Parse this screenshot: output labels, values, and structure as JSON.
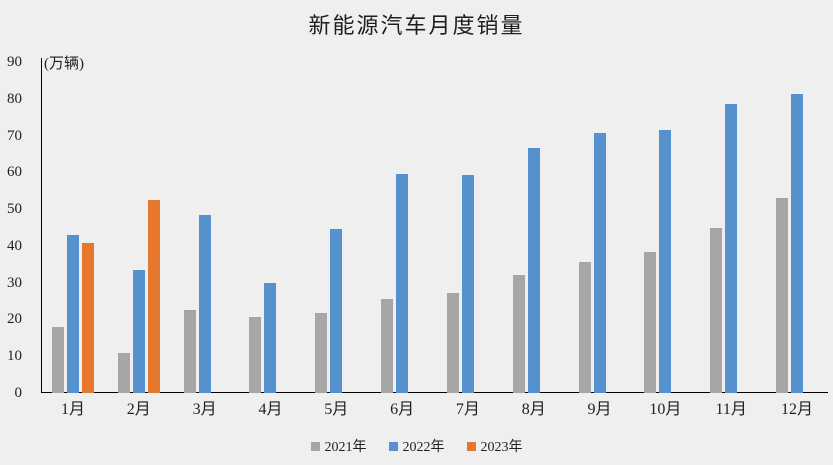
{
  "title": "新能源汽车月度销量",
  "y_axis_unit": "(万辆)",
  "chart_data": {
    "type": "bar",
    "title": "新能源汽车月度销量",
    "ylabel": "(万辆)",
    "xlabel": "",
    "categories": [
      "1月",
      "2月",
      "3月",
      "4月",
      "5月",
      "6月",
      "7月",
      "8月",
      "9月",
      "10月",
      "11月",
      "12月"
    ],
    "series": [
      {
        "name": "2021年",
        "color": "#a6a6a6",
        "values": [
          17.9,
          11.0,
          22.6,
          20.6,
          21.7,
          25.6,
          27.1,
          32.1,
          35.7,
          38.3,
          45.0,
          53.1
        ]
      },
      {
        "name": "2022年",
        "color": "#5592cd",
        "values": [
          43.1,
          33.4,
          48.4,
          29.9,
          44.7,
          59.6,
          59.3,
          66.6,
          70.8,
          71.4,
          78.6,
          81.4
        ]
      },
      {
        "name": "2023年",
        "color": "#e5782d",
        "values": [
          40.8,
          52.5,
          null,
          null,
          null,
          null,
          null,
          null,
          null,
          null,
          null,
          null
        ]
      }
    ],
    "ylim": [
      0,
      90
    ],
    "ytick_interval": 10,
    "ytick_labels": [
      "0",
      "10",
      "20",
      "30",
      "40",
      "50",
      "60",
      "70",
      "80",
      "90"
    ],
    "grid": false,
    "legend_position": "bottom"
  },
  "legend": {
    "items": [
      {
        "label": "2021年",
        "color": "#a6a6a6"
      },
      {
        "label": "2022年",
        "color": "#5592cd"
      },
      {
        "label": "2023年",
        "color": "#e5782d"
      }
    ]
  },
  "colors": {
    "background": "#f0efef",
    "axis": "#000000",
    "text": "#1f1f1f"
  }
}
